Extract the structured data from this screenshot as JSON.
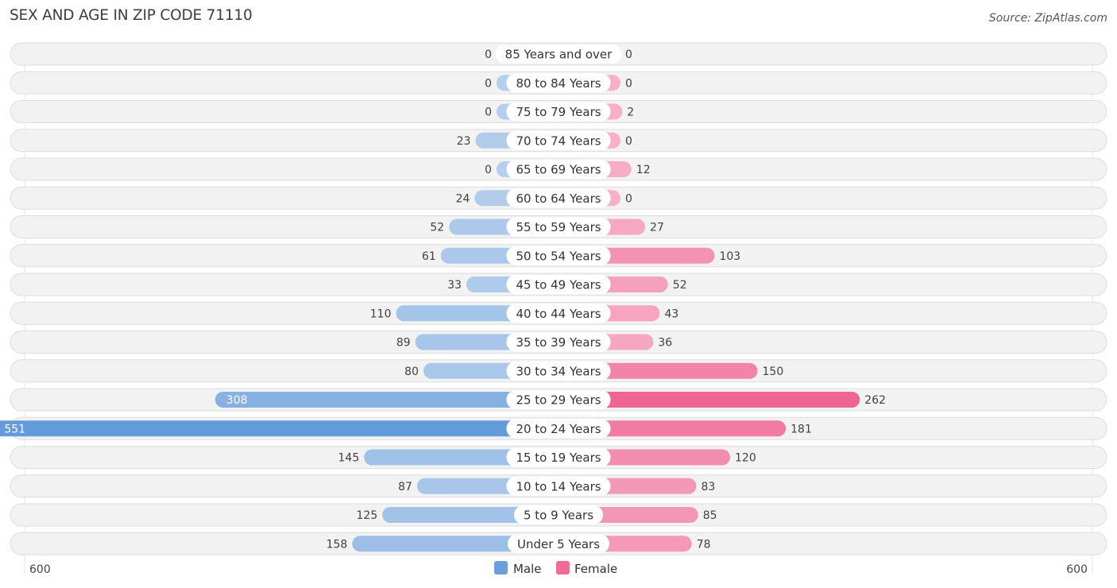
{
  "header": {
    "title": "SEX AND AGE IN ZIP CODE 71110",
    "source": "Source: ZipAtlas.com"
  },
  "chart_data": {
    "type": "bar",
    "orientation": "horizontal-diverging",
    "title": "SEX AND AGE IN ZIP CODE 71110",
    "categories": [
      "85 Years and over",
      "80 to 84 Years",
      "75 to 79 Years",
      "70 to 74 Years",
      "65 to 69 Years",
      "60 to 64 Years",
      "55 to 59 Years",
      "50 to 54 Years",
      "45 to 49 Years",
      "40 to 44 Years",
      "35 to 39 Years",
      "30 to 34 Years",
      "25 to 29 Years",
      "20 to 24 Years",
      "15 to 19 Years",
      "10 to 14 Years",
      "5 to 9 Years",
      "Under 5 Years"
    ],
    "series": [
      {
        "name": "Male",
        "color": "#6a9fdb",
        "values": [
          0,
          0,
          0,
          23,
          0,
          24,
          52,
          61,
          33,
          110,
          89,
          80,
          308,
          551,
          145,
          87,
          125,
          158
        ]
      },
      {
        "name": "Female",
        "color": "#f06b95",
        "values": [
          0,
          0,
          2,
          0,
          12,
          0,
          27,
          103,
          52,
          43,
          36,
          150,
          262,
          181,
          120,
          83,
          85,
          78
        ]
      }
    ],
    "axis": {
      "left_label": "600",
      "right_label": "600",
      "max": 600
    },
    "legend_position": "bottom-center"
  }
}
